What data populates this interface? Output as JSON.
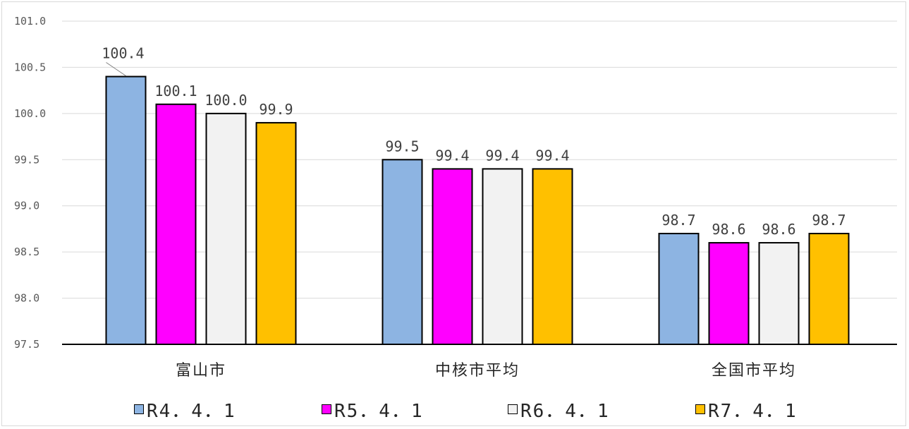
{
  "chart_data": {
    "type": "bar",
    "title": "",
    "xlabel": "",
    "ylabel": "",
    "categories": [
      "富山市",
      "中核市平均",
      "全国市平均"
    ],
    "ylim": [
      97.5,
      101.0
    ],
    "yticks": [
      "97.5",
      "98.0",
      "98.5",
      "99.0",
      "99.5",
      "100.0",
      "100.5",
      "101.0"
    ],
    "ytick_values": [
      97.5,
      98.0,
      98.5,
      99.0,
      99.5,
      100.0,
      100.5,
      101.0
    ],
    "grid": true,
    "legend_position": "bottom",
    "series": [
      {
        "name": "R4.4.1",
        "color": "#8DB4E2",
        "values": [
          100.4,
          99.5,
          98.7
        ],
        "labels": [
          "100.4",
          "99.5",
          "98.7"
        ]
      },
      {
        "name": "R5.4.1",
        "color": "#FF00FF",
        "values": [
          100.1,
          99.4,
          98.6
        ],
        "labels": [
          "100.1",
          "99.4",
          "98.6"
        ]
      },
      {
        "name": "R6.4.1",
        "color": "#F2F2F2",
        "values": [
          100.0,
          99.4,
          98.6
        ],
        "labels": [
          "100.0",
          "99.4",
          "98.6"
        ]
      },
      {
        "name": "R7.4.1",
        "color": "#FFC000",
        "values": [
          99.9,
          99.4,
          98.7
        ],
        "labels": [
          "99.9",
          "99.4",
          "98.7"
        ]
      }
    ]
  },
  "legend": {
    "items": [
      "R4．4．1",
      "R5．4．1",
      "R6．4．1",
      "R7．4．1"
    ]
  }
}
